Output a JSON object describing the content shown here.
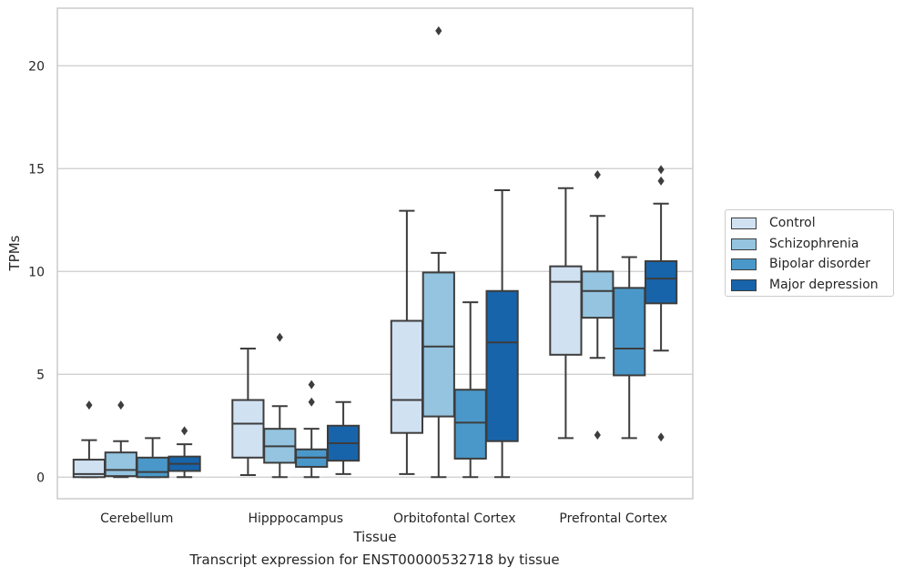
{
  "caption": "Transcript expression for ENST00000532718 by tissue",
  "chart_data": {
    "type": "box",
    "title": "",
    "xlabel": "Tissue",
    "ylabel": "TPMs",
    "categories": [
      "Cerebellum",
      "Hipppocampus",
      "Orbitofontal Cortex",
      "Prefrontal Cortex"
    ],
    "ylim": [
      -1.05,
      22.8
    ],
    "yticks": [
      0,
      5,
      10,
      15,
      20
    ],
    "grid": "horizontal",
    "legend_position": "right",
    "series": [
      {
        "name": "Control",
        "color": "#d0e1f2",
        "boxes": [
          {
            "whislo": 0.0,
            "q1": 0.0,
            "med": 0.15,
            "q3": 0.85,
            "whishi": 1.8,
            "fliers": [
              3.5
            ]
          },
          {
            "whislo": 0.1,
            "q1": 0.95,
            "med": 2.6,
            "q3": 3.75,
            "whishi": 6.25,
            "fliers": []
          },
          {
            "whislo": 0.15,
            "q1": 2.15,
            "med": 3.75,
            "q3": 7.6,
            "whishi": 12.95,
            "fliers": []
          },
          {
            "whislo": 1.9,
            "q1": 5.95,
            "med": 9.5,
            "q3": 10.25,
            "whishi": 14.05,
            "fliers": []
          }
        ]
      },
      {
        "name": "Schizophrenia",
        "color": "#94c4df",
        "boxes": [
          {
            "whislo": 0.0,
            "q1": 0.05,
            "med": 0.35,
            "q3": 1.2,
            "whishi": 1.75,
            "fliers": [
              3.5
            ]
          },
          {
            "whislo": 0.0,
            "q1": 0.7,
            "med": 1.5,
            "q3": 2.35,
            "whishi": 3.45,
            "fliers": [
              6.8
            ]
          },
          {
            "whislo": 0.0,
            "q1": 2.95,
            "med": 6.35,
            "q3": 9.95,
            "whishi": 10.9,
            "fliers": [
              21.7
            ]
          },
          {
            "whislo": 5.8,
            "q1": 7.75,
            "med": 9.05,
            "q3": 10.0,
            "whishi": 12.7,
            "fliers": [
              2.05,
              14.7
            ]
          }
        ]
      },
      {
        "name": "Bipolar disorder",
        "color": "#4a98c9",
        "boxes": [
          {
            "whislo": 0.0,
            "q1": 0.0,
            "med": 0.25,
            "q3": 0.95,
            "whishi": 1.9,
            "fliers": []
          },
          {
            "whislo": 0.0,
            "q1": 0.5,
            "med": 0.95,
            "q3": 1.35,
            "whishi": 2.35,
            "fliers": [
              3.65,
              4.5
            ]
          },
          {
            "whislo": 0.0,
            "q1": 0.9,
            "med": 2.65,
            "q3": 4.25,
            "whishi": 8.5,
            "fliers": []
          },
          {
            "whislo": 1.9,
            "q1": 4.95,
            "med": 6.25,
            "q3": 9.2,
            "whishi": 10.7,
            "fliers": []
          }
        ]
      },
      {
        "name": "Major depression",
        "color": "#1764ab",
        "boxes": [
          {
            "whislo": 0.0,
            "q1": 0.3,
            "med": 0.65,
            "q3": 1.0,
            "whishi": 1.6,
            "fliers": [
              2.25
            ]
          },
          {
            "whislo": 0.15,
            "q1": 0.8,
            "med": 1.65,
            "q3": 2.5,
            "whishi": 3.65,
            "fliers": []
          },
          {
            "whislo": 0.0,
            "q1": 1.75,
            "med": 6.55,
            "q3": 9.05,
            "whishi": 13.95,
            "fliers": []
          },
          {
            "whislo": 6.15,
            "q1": 8.45,
            "med": 9.65,
            "q3": 10.5,
            "whishi": 13.3,
            "fliers": [
              1.95,
              14.4,
              14.95
            ]
          }
        ]
      }
    ]
  }
}
